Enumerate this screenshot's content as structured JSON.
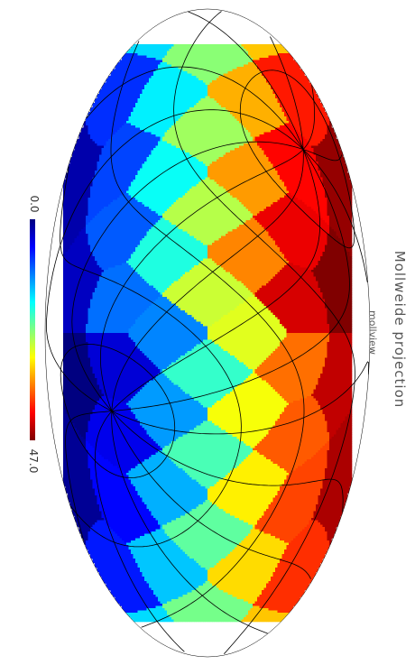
{
  "title": "Mollweide projection",
  "subtitle": "mollview",
  "colorbar": {
    "min_label": "0.0",
    "max_label": "47.0",
    "min": 0.0,
    "max": 47.0,
    "colormap": "jet"
  },
  "chart_data": {
    "type": "heatmap",
    "projection": "mollweide",
    "title": "Mollweide projection",
    "subtitle": "mollview",
    "healpix_nside": 2,
    "npix": 48,
    "value_range": [
      0.0,
      47.0
    ],
    "graticule": true,
    "colormap": "jet",
    "colorbar_orientation": "vertical, left side",
    "figure_rotation_deg": 90
  }
}
